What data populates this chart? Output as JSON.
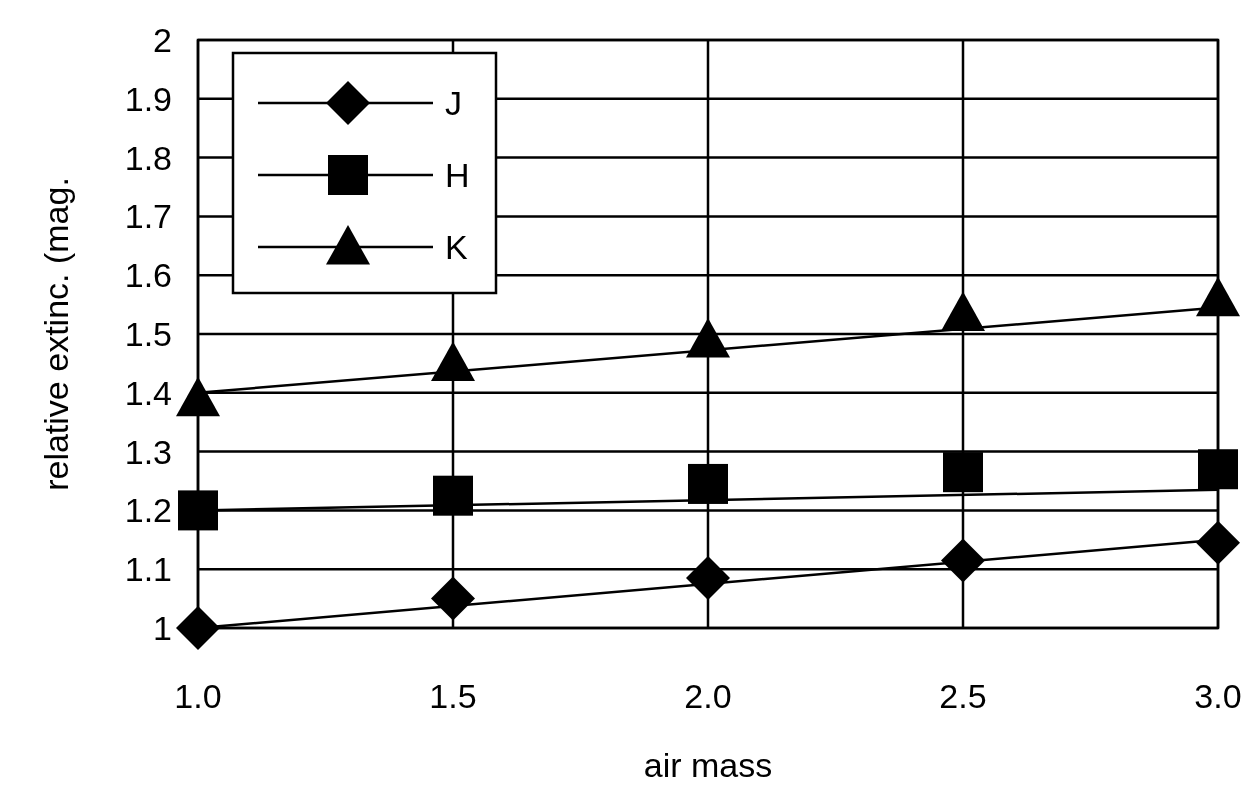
{
  "chart_data": {
    "type": "scatter",
    "xlabel": "air mass",
    "ylabel": "relative extinc. (mag.",
    "xlim": [
      1,
      3
    ],
    "ylim": [
      1,
      2
    ],
    "xticks": [
      {
        "value": 1,
        "label": "1.0"
      },
      {
        "value": 1.5,
        "label": "1.5"
      },
      {
        "value": 2,
        "label": "2.0"
      },
      {
        "value": 2.5,
        "label": "2.5"
      },
      {
        "value": 3,
        "label": "3.0"
      }
    ],
    "yticks": [
      1,
      1.1,
      1.2,
      1.3,
      1.4,
      1.5,
      1.6,
      1.7,
      1.8,
      1.9,
      2
    ],
    "grid": true,
    "legend": "top left",
    "series": [
      {
        "name": "J",
        "color": "#000000",
        "marker": "diamond",
        "x": [
          1,
          1.5,
          2,
          2.5,
          3
        ],
        "values": [
          1.0,
          1.05,
          1.085,
          1.115,
          1.145
        ]
      },
      {
        "name": "H",
        "color": "#000000",
        "marker": "square",
        "x": [
          1,
          1.5,
          2,
          2.5,
          3
        ],
        "values": [
          1.2,
          1.225,
          1.245,
          1.265,
          1.27
        ]
      },
      {
        "name": "K",
        "color": "#000000",
        "marker": "triangle",
        "x": [
          1,
          1.5,
          2,
          2.5,
          3
        ],
        "values": [
          1.39,
          1.45,
          1.49,
          1.535,
          1.56
        ]
      },
      {
        "color": "#000000",
        "type": "line",
        "x": [
          1,
          3
        ],
        "values": [
          1.0,
          1.15
        ]
      },
      {
        "color": "#000000",
        "type": "line",
        "x": [
          1,
          3
        ],
        "values": [
          1.2,
          1.235
        ]
      },
      {
        "color": "#000000",
        "type": "line",
        "x": [
          1,
          3
        ],
        "values": [
          1.4,
          1.545
        ]
      }
    ]
  }
}
